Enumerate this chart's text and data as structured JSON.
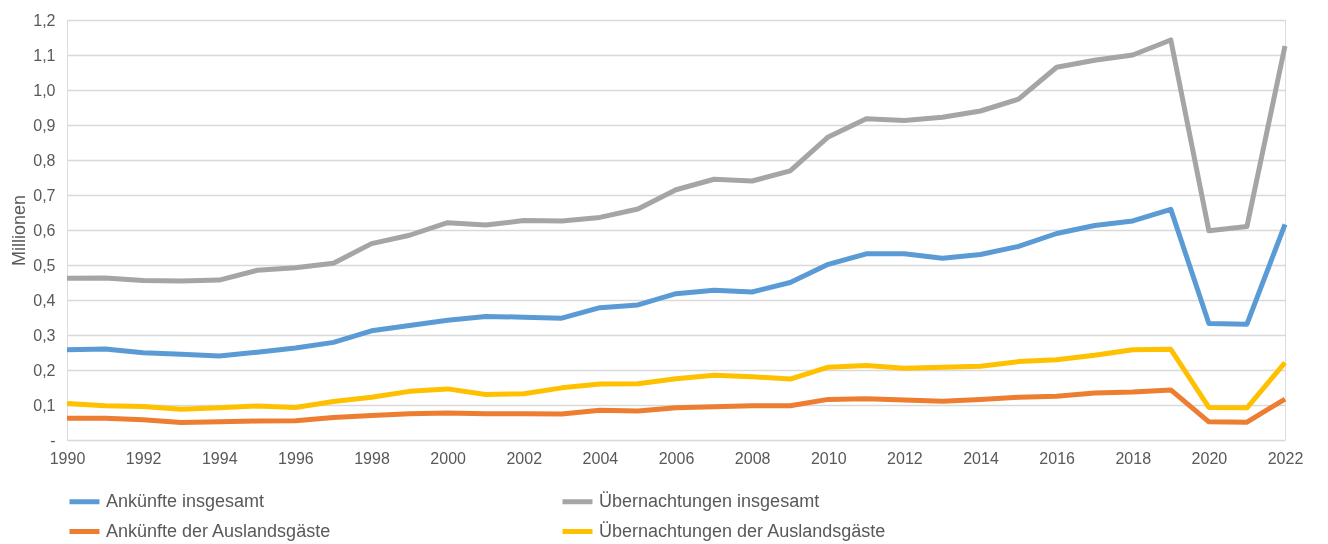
{
  "chart_data": {
    "type": "line",
    "ylabel": "Millionen",
    "x": [
      1990,
      1991,
      1992,
      1993,
      1994,
      1995,
      1996,
      1997,
      1998,
      1999,
      2000,
      2001,
      2002,
      2003,
      2004,
      2005,
      2006,
      2007,
      2008,
      2009,
      2010,
      2011,
      2012,
      2013,
      2014,
      2015,
      2016,
      2017,
      2018,
      2019,
      2020,
      2021,
      2022
    ],
    "series": [
      {
        "name": "Ankünfte insgesamt",
        "color": "#5b9bd5",
        "values": [
          0.258,
          0.26,
          0.249,
          0.245,
          0.24,
          0.251,
          0.263,
          0.279,
          0.312,
          0.327,
          0.342,
          0.353,
          0.351,
          0.348,
          0.378,
          0.386,
          0.418,
          0.428,
          0.423,
          0.45,
          0.502,
          0.532,
          0.532,
          0.519,
          0.53,
          0.553,
          0.59,
          0.613,
          0.626,
          0.659,
          0.333,
          0.331,
          0.616
        ]
      },
      {
        "name": "Übernachtungen insgesamt",
        "color": "#a5a5a5",
        "values": [
          0.462,
          0.463,
          0.456,
          0.454,
          0.457,
          0.485,
          0.492,
          0.505,
          0.561,
          0.585,
          0.621,
          0.614,
          0.627,
          0.626,
          0.636,
          0.66,
          0.715,
          0.745,
          0.74,
          0.769,
          0.866,
          0.918,
          0.913,
          0.922,
          0.94,
          0.974,
          1.065,
          1.085,
          1.1,
          1.143,
          0.598,
          0.61,
          1.126
        ]
      },
      {
        "name": "Ankünfte der Auslandsgäste",
        "color": "#ed7d31",
        "values": [
          0.062,
          0.062,
          0.058,
          0.05,
          0.052,
          0.054,
          0.055,
          0.064,
          0.07,
          0.075,
          0.077,
          0.075,
          0.075,
          0.074,
          0.085,
          0.083,
          0.092,
          0.095,
          0.098,
          0.098,
          0.116,
          0.118,
          0.114,
          0.111,
          0.116,
          0.122,
          0.125,
          0.134,
          0.137,
          0.143,
          0.052,
          0.051,
          0.117
        ]
      },
      {
        "name": "Übernachtungen der Auslandsgäste",
        "color": "#ffc000",
        "values": [
          0.104,
          0.098,
          0.096,
          0.088,
          0.092,
          0.097,
          0.093,
          0.11,
          0.122,
          0.139,
          0.146,
          0.13,
          0.132,
          0.149,
          0.16,
          0.161,
          0.175,
          0.185,
          0.181,
          0.174,
          0.208,
          0.213,
          0.205,
          0.208,
          0.211,
          0.224,
          0.229,
          0.242,
          0.258,
          0.259,
          0.093,
          0.092,
          0.221
        ]
      }
    ],
    "xlim": [
      1990,
      2022
    ],
    "xticks": [
      1990,
      1992,
      1994,
      1996,
      1998,
      2000,
      2002,
      2004,
      2006,
      2008,
      2010,
      2012,
      2014,
      2016,
      2018,
      2020,
      2022
    ],
    "ylim": [
      0,
      1.2
    ],
    "yticks": [
      {
        "value": 0,
        "label": "-"
      },
      {
        "value": 0.1,
        "label": "0,1"
      },
      {
        "value": 0.2,
        "label": "0,2"
      },
      {
        "value": 0.3,
        "label": "0,3"
      },
      {
        "value": 0.4,
        "label": "0,4"
      },
      {
        "value": 0.5,
        "label": "0,5"
      },
      {
        "value": 0.6,
        "label": "0,6"
      },
      {
        "value": 0.7,
        "label": "0,7"
      },
      {
        "value": 0.8,
        "label": "0,8"
      },
      {
        "value": 0.9,
        "label": "0,9"
      },
      {
        "value": 1.0,
        "label": "1,0"
      },
      {
        "value": 1.1,
        "label": "1,1"
      },
      {
        "value": 1.2,
        "label": "1,2"
      }
    ],
    "grid": "y",
    "legend": "bottom",
    "marker": "none",
    "line_style": "solid"
  }
}
